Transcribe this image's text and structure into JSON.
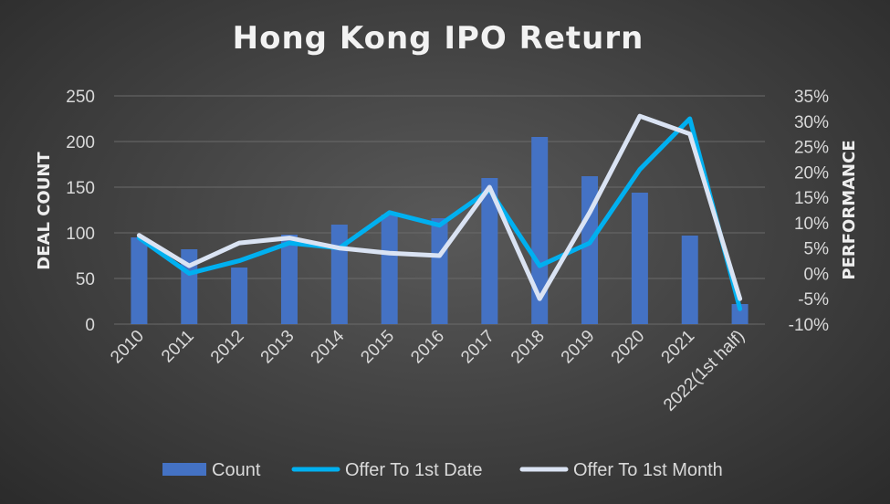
{
  "chart_data": {
    "type": "bar",
    "title": "Hong Kong IPO Return",
    "categories": [
      "2010",
      "2011",
      "2012",
      "2013",
      "2014",
      "2015",
      "2016",
      "2017",
      "2018",
      "2019",
      "2020",
      "2021",
      "2022(1st half)"
    ],
    "y_left": {
      "label": "DEAL COUNT",
      "lim": [
        0,
        250
      ],
      "ticks": [
        "0",
        "50",
        "100",
        "150",
        "200",
        "250"
      ]
    },
    "y_right": {
      "label": "PERFORMANCE",
      "lim": [
        -10,
        35
      ],
      "ticks": [
        "-10%",
        "-5%",
        "0%",
        "5%",
        "10%",
        "15%",
        "20%",
        "25%",
        "30%",
        "35%"
      ]
    },
    "grid": "horizontal",
    "legend_position": "bottom",
    "series": [
      {
        "name": "Count",
        "type": "bar",
        "axis": "left",
        "color": "#4472c4",
        "values": [
          95,
          82,
          62,
          98,
          109,
          120,
          116,
          160,
          205,
          162,
          144,
          97,
          22
        ]
      },
      {
        "name": "Offer To 1st Date",
        "type": "line",
        "axis": "right",
        "unit": "%",
        "color": "#00b0f0",
        "values": [
          7,
          0,
          2.5,
          6,
          5,
          12,
          9.5,
          16.5,
          1.5,
          6,
          20.5,
          30.5,
          -7
        ]
      },
      {
        "name": "Offer To 1st Month",
        "type": "line",
        "axis": "right",
        "unit": "%",
        "color": "#dae3f3",
        "values": [
          7.5,
          1.5,
          6,
          7,
          5,
          4,
          3.5,
          17,
          -5,
          12,
          31,
          27.5,
          -5
        ]
      }
    ]
  }
}
